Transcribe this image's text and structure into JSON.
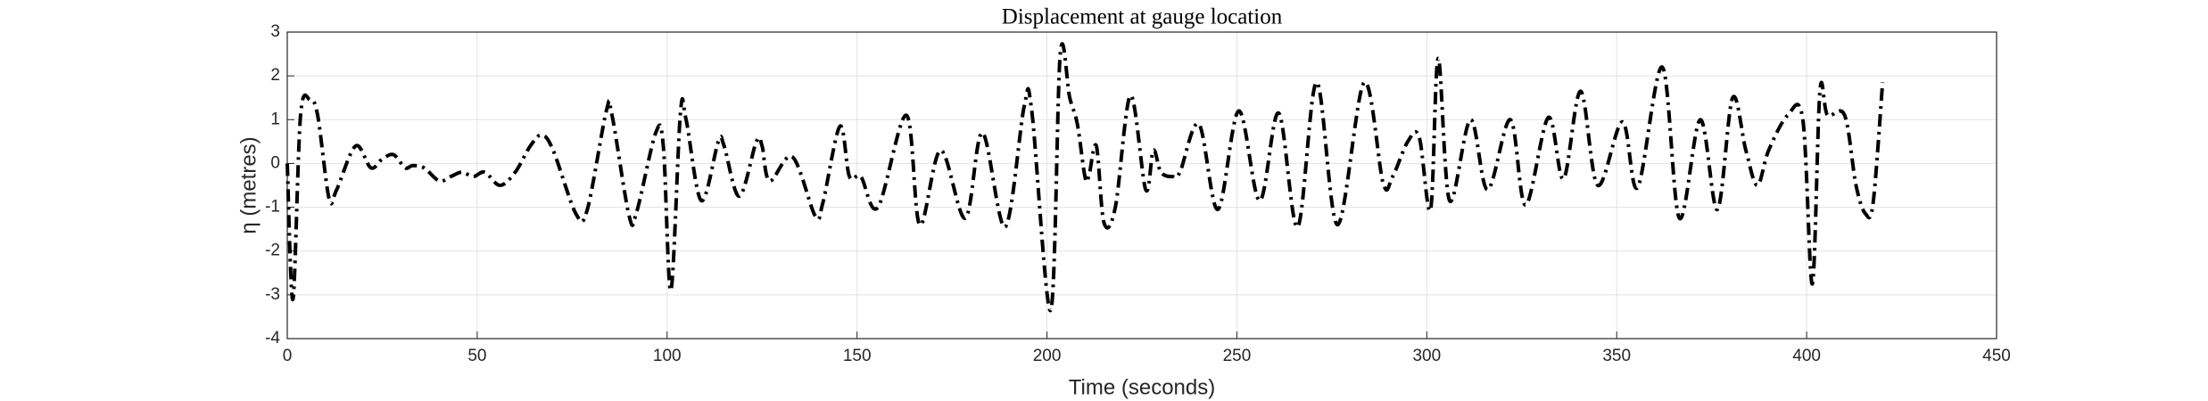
{
  "chart_data": {
    "type": "line",
    "title": "Displacement at gauge location",
    "xlabel": "Time (seconds)",
    "ylabel": "η (metres)",
    "x": [
      0,
      1.5,
      3.5,
      6,
      8,
      11,
      13,
      18,
      22,
      25,
      28,
      31,
      33,
      36,
      40,
      43,
      46,
      49,
      52,
      56,
      60,
      64,
      67,
      70,
      76,
      79,
      84,
      85.5,
      90,
      92,
      97,
      99,
      101,
      103.5,
      105,
      109,
      113.5,
      115,
      119,
      123.5,
      125,
      127,
      133,
      139,
      141,
      145.5,
      148,
      151,
      155.5,
      163,
      166.5,
      172,
      178.5,
      183,
      189,
      194,
      196,
      201,
      203.5,
      206,
      208,
      210,
      211,
      213,
      215,
      218,
      222,
      226,
      228,
      230,
      233,
      235,
      240,
      245,
      250.5,
      256,
      261,
      266,
      271,
      276.5,
      283.5,
      288.5,
      291,
      295,
      298,
      301,
      303,
      306,
      311.5,
      316,
      322,
      326,
      332,
      336,
      340.5,
      345,
      351.5,
      355.5,
      362,
      366.5,
      372,
      376.5,
      380.5,
      384,
      387,
      390,
      395,
      399,
      401.5,
      403.5,
      405.5,
      410,
      413,
      415.5,
      417.5,
      420
    ],
    "series": [
      {
        "name": "η",
        "color": "#000000",
        "values": [
          0,
          -3.1,
          1.1,
          1.45,
          1.1,
          -0.8,
          -0.6,
          0.4,
          -0.1,
          0.1,
          0.2,
          -0.1,
          -0.05,
          -0.1,
          -0.4,
          -0.3,
          -0.2,
          -0.3,
          -0.2,
          -0.5,
          -0.2,
          0.4,
          0.65,
          0.3,
          -1.15,
          -1.05,
          1.2,
          1.1,
          -1.2,
          -1.1,
          0.7,
          0.4,
          -2.9,
          1.15,
          1.0,
          -0.85,
          0.5,
          0.4,
          -0.75,
          0.5,
          0.4,
          -0.4,
          0.15,
          -1.2,
          -0.9,
          0.85,
          -0.3,
          -0.3,
          -1.0,
          1.1,
          -1.4,
          0.3,
          -1.25,
          0.7,
          -1.45,
          1.3,
          1.2,
          -3.35,
          2.5,
          1.5,
          0.9,
          -0.3,
          -0.3,
          0.4,
          -1.35,
          -1.0,
          1.55,
          -0.6,
          0.3,
          -0.2,
          -0.3,
          -0.2,
          0.9,
          -1.05,
          1.2,
          -0.85,
          1.15,
          -1.45,
          1.85,
          -1.4,
          1.85,
          -0.45,
          -0.3,
          0.5,
          0.6,
          -1.05,
          2.4,
          -0.85,
          1.0,
          -0.6,
          1.0,
          -0.95,
          1.05,
          -0.35,
          1.65,
          -0.5,
          0.95,
          -0.55,
          2.2,
          -1.25,
          1.0,
          -1.05,
          1.5,
          0.3,
          -0.5,
          0.3,
          1.1,
          1.0,
          -2.75,
          1.65,
          1.1,
          1.1,
          -0.5,
          -1.15,
          -0.9,
          1.85
        ]
      }
    ],
    "xlim": [
      0,
      450
    ],
    "xticks": [
      0,
      50,
      100,
      150,
      200,
      250,
      300,
      350,
      400,
      450
    ],
    "ylim": [
      -4,
      3
    ],
    "yticks": [
      -4,
      -3,
      -2,
      -1,
      0,
      1,
      2,
      3
    ],
    "grid": true
  }
}
